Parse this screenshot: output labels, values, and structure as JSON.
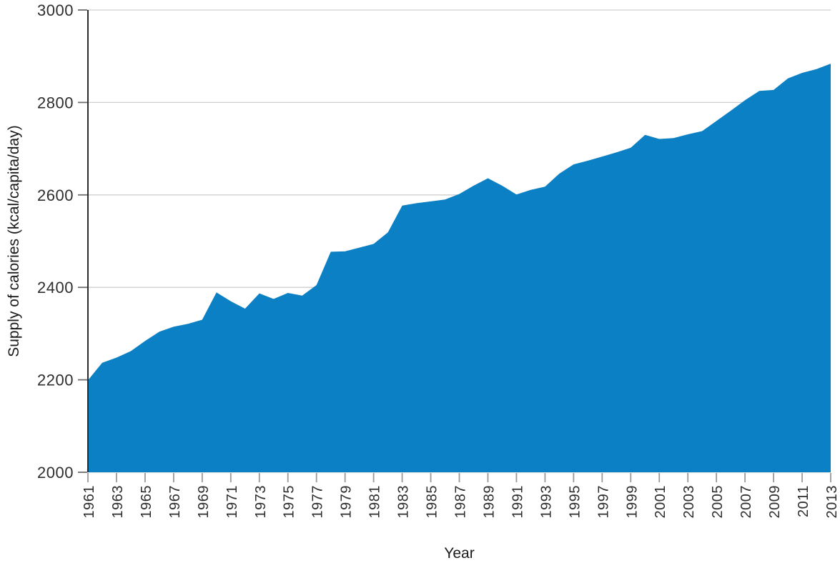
{
  "chart_data": {
    "type": "area",
    "title": "",
    "xlabel": "Year",
    "ylabel": "Supply of calories (kcal/capita/day)",
    "x": [
      1961,
      1962,
      1963,
      1964,
      1965,
      1966,
      1967,
      1968,
      1969,
      1970,
      1971,
      1972,
      1973,
      1974,
      1975,
      1976,
      1977,
      1978,
      1979,
      1980,
      1981,
      1982,
      1983,
      1984,
      1985,
      1986,
      1987,
      1988,
      1989,
      1990,
      1991,
      1992,
      1993,
      1994,
      1995,
      1996,
      1997,
      1998,
      1999,
      2000,
      2001,
      2002,
      2003,
      2004,
      2005,
      2006,
      2007,
      2008,
      2009,
      2010,
      2011,
      2012,
      2013
    ],
    "values": [
      2199,
      2237,
      2248,
      2262,
      2284,
      2304,
      2315,
      2321,
      2330,
      2389,
      2370,
      2354,
      2387,
      2375,
      2388,
      2382,
      2405,
      2477,
      2478,
      2486,
      2494,
      2519,
      2577,
      2582,
      2586,
      2590,
      2602,
      2620,
      2636,
      2620,
      2601,
      2611,
      2618,
      2646,
      2666,
      2674,
      2683,
      2692,
      2702,
      2730,
      2721,
      2723,
      2731,
      2738,
      2760,
      2782,
      2805,
      2825,
      2827,
      2852,
      2864,
      2872,
      2884
    ],
    "ylim": [
      2000,
      3000
    ],
    "y_ticks": [
      2000,
      2200,
      2400,
      2600,
      2800,
      3000
    ],
    "x_tick_labels": [
      "1961",
      "1963",
      "1965",
      "1967",
      "1969",
      "1971",
      "1973",
      "1975",
      "1977",
      "1979",
      "1981",
      "1983",
      "1985",
      "1987",
      "1989",
      "1991",
      "1993",
      "1995",
      "1997",
      "1999",
      "2001",
      "2003",
      "2005",
      "2007",
      "2009",
      "2011",
      "2013"
    ],
    "grid": "horizontal-only",
    "legend": "none",
    "colors": {
      "area_fill": "#0b80c4",
      "grid_line": "#cfcfcf",
      "axis_line": "#2b2b2b",
      "y_tick_mark": "#6e6e6e",
      "x_tick_mark": "#9a9a9a",
      "tick_label_text": "#2e2e2e",
      "axis_title_text": "#1a1a1a"
    }
  }
}
